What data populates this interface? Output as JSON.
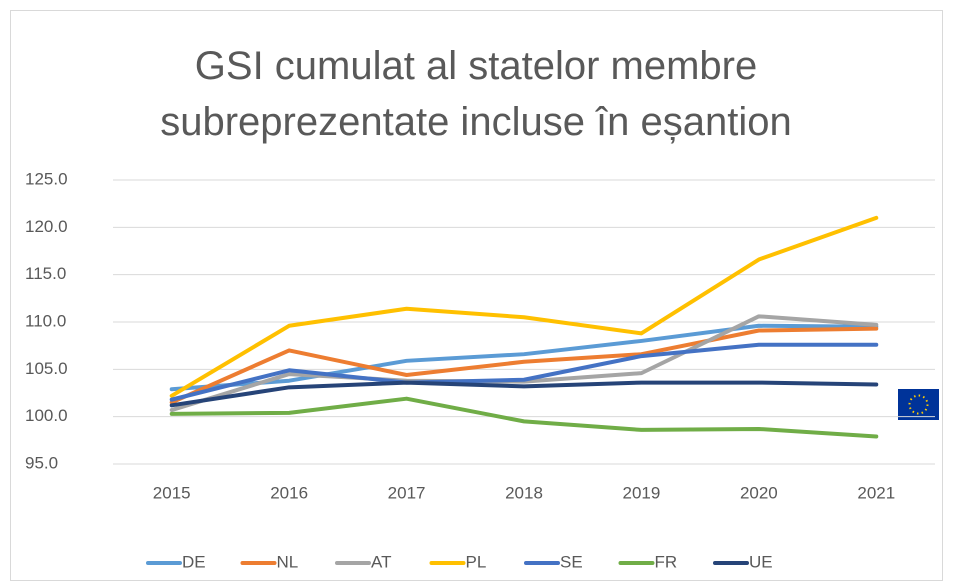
{
  "chart_data": {
    "type": "line",
    "title": "GSI cumulat al statelor membre subreprezentate incluse în eșantion",
    "categories": [
      "2015",
      "2016",
      "2017",
      "2018",
      "2019",
      "2020",
      "2021"
    ],
    "series": [
      {
        "name": "DE",
        "color": "#5b9bd5",
        "values": [
          102.9,
          103.8,
          105.9,
          106.6,
          108.0,
          109.6,
          109.5
        ]
      },
      {
        "name": "NL",
        "color": "#ed7d31",
        "values": [
          101.5,
          107.0,
          104.4,
          105.8,
          106.6,
          109.1,
          109.3
        ]
      },
      {
        "name": "AT",
        "color": "#a5a5a5",
        "values": [
          100.7,
          104.5,
          103.8,
          103.7,
          104.6,
          110.6,
          109.7
        ]
      },
      {
        "name": "PL",
        "color": "#ffc000",
        "values": [
          102.2,
          109.6,
          111.4,
          110.5,
          108.8,
          116.6,
          121.0
        ]
      },
      {
        "name": "SE",
        "color": "#4472c4",
        "values": [
          101.8,
          104.9,
          103.6,
          103.9,
          106.4,
          107.6,
          107.6
        ]
      },
      {
        "name": "FR",
        "color": "#70ad47",
        "values": [
          100.3,
          100.4,
          101.9,
          99.5,
          98.6,
          98.7,
          97.9
        ]
      },
      {
        "name": "UE",
        "color": "#264478",
        "values": [
          101.2,
          103.1,
          103.6,
          103.2,
          103.6,
          103.6,
          103.4
        ]
      }
    ],
    "ylim": [
      95,
      125
    ],
    "yticks": [
      {
        "value": 95,
        "label": "95.0"
      },
      {
        "value": 100,
        "label": "100.0"
      },
      {
        "value": 105,
        "label": "105.0"
      },
      {
        "value": 110,
        "label": "110.0"
      },
      {
        "value": 115,
        "label": "115.0"
      },
      {
        "value": 120,
        "label": "120.0"
      },
      {
        "value": 125,
        "label": "125.0"
      }
    ],
    "grid": true,
    "legend": "bottom"
  }
}
